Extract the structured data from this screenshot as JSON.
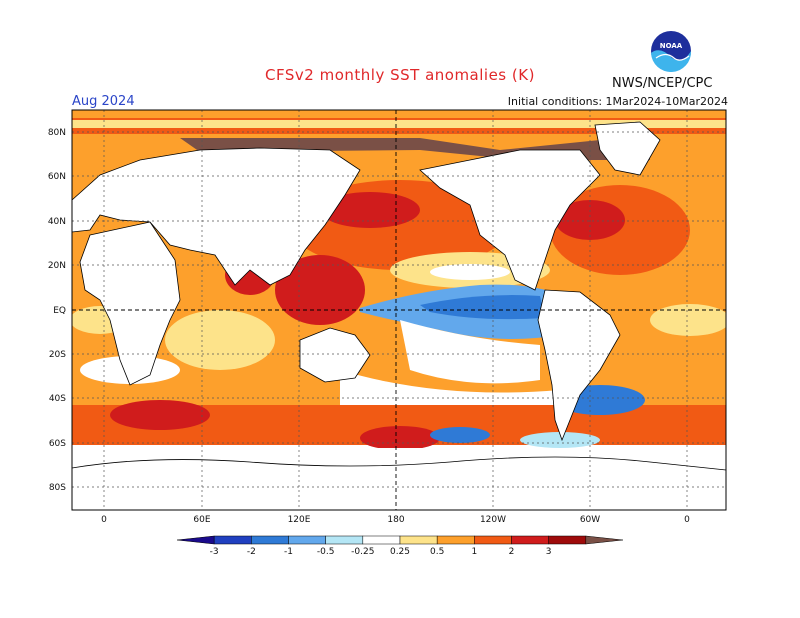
{
  "title": "CFSv2 monthly SST anomalies (K)",
  "period": "Aug 2024",
  "initial_conditions": "Initial conditions: 1Mar2024-10Mar2024",
  "agency": "NWS/NCEP/CPC",
  "logo_text": "NOAA",
  "lat_labels": [
    "80N",
    "60N",
    "40N",
    "20N",
    "EQ",
    "20S",
    "40S",
    "60S",
    "80S"
  ],
  "lon_labels": [
    "0",
    "60E",
    "120E",
    "180",
    "120W",
    "60W",
    "0"
  ],
  "colorbar": {
    "labels": [
      "-3",
      "-2",
      "-1",
      "-0.5",
      "-0.25",
      "0.25",
      "0.5",
      "1",
      "2",
      "3"
    ],
    "colors": [
      "#1a0a8c",
      "#2040c0",
      "#2f7ad6",
      "#62a8ec",
      "#b4e6f5",
      "#ffffff",
      "#fde38a",
      "#fda02c",
      "#f15a14",
      "#d01c1c",
      "#9e0a0a",
      "#7a5046"
    ]
  }
}
